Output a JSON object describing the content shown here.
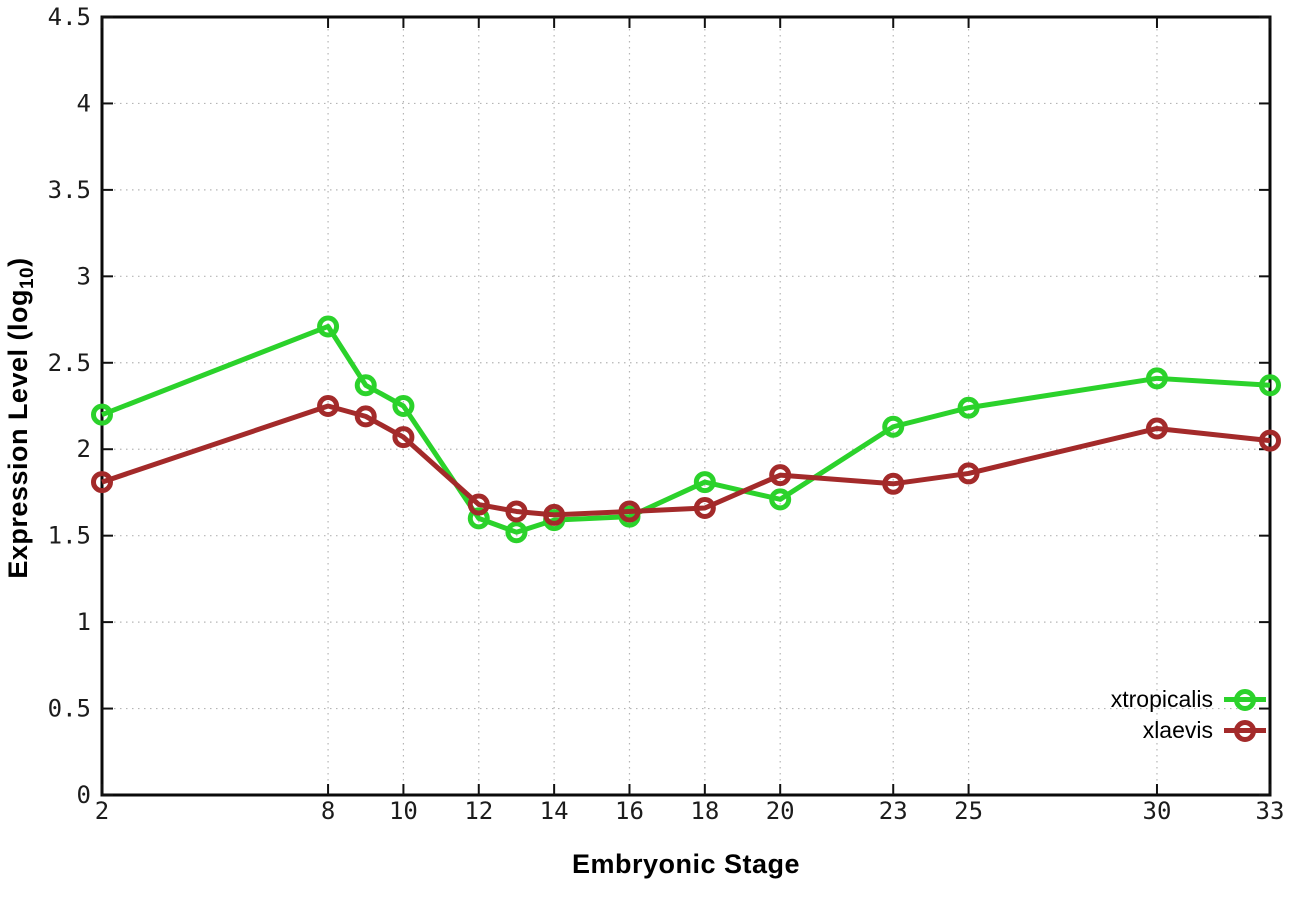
{
  "chart_data": {
    "type": "line",
    "title": "",
    "xlabel": "Embryonic Stage",
    "ylabel": "Expression Level (log10)",
    "ylabel_parts": {
      "prefix": "Expression Level (log",
      "subscript": "10",
      "suffix": ")"
    },
    "x": [
      2,
      8,
      9,
      10,
      12,
      13,
      14,
      16,
      18,
      20,
      23,
      25,
      30,
      33
    ],
    "xticks": [
      2,
      8,
      10,
      12,
      14,
      16,
      18,
      20,
      23,
      25,
      30,
      33
    ],
    "yticks": [
      0,
      0.5,
      1,
      1.5,
      2,
      2.5,
      3,
      3.5,
      4,
      4.5
    ],
    "xlim": [
      2,
      33
    ],
    "ylim": [
      0,
      4.5
    ],
    "grid": true,
    "grid_style": "dotted",
    "legend_position": "bottom-right-inside",
    "marker": "open-circle",
    "series": [
      {
        "name": "xtropicalis",
        "color": "#2bd22b",
        "values": [
          2.2,
          2.71,
          2.37,
          2.25,
          1.6,
          1.52,
          1.59,
          1.61,
          1.81,
          1.71,
          2.13,
          2.24,
          2.41,
          2.37
        ]
      },
      {
        "name": "xlaevis",
        "color": "#a32a2a",
        "values": [
          1.81,
          2.25,
          2.19,
          2.07,
          1.68,
          1.64,
          1.62,
          1.64,
          1.66,
          1.85,
          1.8,
          1.86,
          2.12,
          2.05
        ]
      }
    ]
  }
}
